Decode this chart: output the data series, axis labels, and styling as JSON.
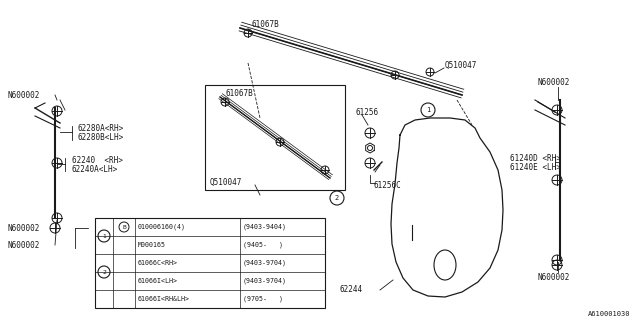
{
  "bg_color": "#ffffff",
  "line_color": "#1a1a1a",
  "fig_label": "A610001030",
  "font_size": 5.5,
  "table": {
    "rows": [
      [
        "1",
        "B",
        "010006160(4)",
        "(9403-9404)"
      ],
      [
        "",
        "",
        "M000165",
        "(9405-   )"
      ],
      [
        "2",
        "",
        "61066C<RH>",
        "(9403-9704)"
      ],
      [
        "",
        "",
        "61066I<LH>",
        "(9403-9704)"
      ],
      [
        "",
        "",
        "61066I<RH&LH>",
        "(9705-   )"
      ]
    ]
  }
}
